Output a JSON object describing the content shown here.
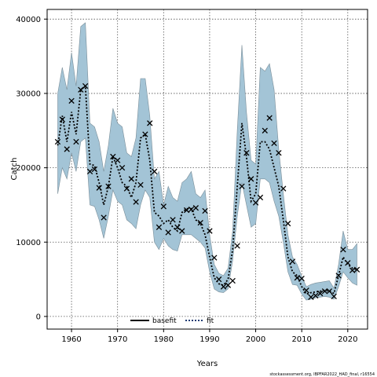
{
  "chart_data": {
    "type": "line",
    "xlabel": "Years",
    "ylabel": "Catch",
    "xlim": [
      1954.7,
      2024.3
    ],
    "ylim": [
      -1700,
      41300
    ],
    "x_ticks": [
      1960,
      1970,
      1980,
      1990,
      2000,
      2010,
      2020
    ],
    "y_ticks": [
      0,
      10000,
      20000,
      30000,
      40000
    ],
    "grid": true,
    "legend_position": "bottom-center",
    "colors": {
      "band": "#a3c4d6",
      "band_edge": "#7a8e99",
      "line": "#000000"
    },
    "credit": "stockassessment.org, IBPFAR2022_HAD_final, r16554",
    "x": [
      1957,
      1958,
      1959,
      1960,
      1961,
      1962,
      1963,
      1964,
      1965,
      1966,
      1967,
      1968,
      1969,
      1970,
      1971,
      1972,
      1973,
      1974,
      1975,
      1976,
      1977,
      1978,
      1979,
      1980,
      1981,
      1982,
      1983,
      1984,
      1985,
      1986,
      1987,
      1988,
      1989,
      1990,
      1991,
      1992,
      1993,
      1994,
      1995,
      1996,
      1997,
      1998,
      1999,
      2000,
      2001,
      2002,
      2003,
      2004,
      2005,
      2006,
      2007,
      2008,
      2009,
      2010,
      2011,
      2012,
      2013,
      2014,
      2015,
      2016,
      2017,
      2018,
      2019,
      2020,
      2021,
      2022
    ],
    "series": [
      {
        "name": "fit",
        "style": "dotted",
        "values": [
          23000,
          27000,
          23500,
          27500,
          24500,
          30500,
          31000,
          20500,
          20300,
          18000,
          15000,
          17500,
          21500,
          20000,
          18000,
          17500,
          16000,
          18000,
          24000,
          24500,
          21000,
          14000,
          13500,
          12500,
          13000,
          12000,
          11500,
          14000,
          14500,
          14500,
          13000,
          12500,
          11000,
          8000,
          5200,
          4400,
          4200,
          5000,
          9000,
          17500,
          26000,
          21500,
          15500,
          16500,
          23500,
          23500,
          22500,
          20000,
          17500,
          13000,
          8000,
          6000,
          5500,
          4000,
          3000,
          3200,
          3300,
          3400,
          3500,
          3400,
          3100,
          5500,
          8000,
          7000,
          6500,
          6300
        ]
      },
      {
        "name": "observed",
        "type": "scatter",
        "marker": "x",
        "values": [
          23500,
          26500,
          22500,
          29000,
          23500,
          30500,
          31000,
          19500,
          19800,
          17300,
          13300,
          17500,
          21500,
          21000,
          20000,
          17200,
          18500,
          15400,
          17700,
          24500,
          26000,
          19500,
          12000,
          14800,
          11300,
          13000,
          12000,
          11500,
          14300,
          14400,
          14600,
          12600,
          14200,
          11500,
          7900,
          5000,
          4000,
          4200,
          4800,
          9500,
          17500,
          22000,
          18500,
          15300,
          16000,
          25000,
          26700,
          23300,
          22000,
          17200,
          12500,
          7400,
          5200,
          5100,
          3500,
          2600,
          2800,
          3100,
          3400,
          3400,
          2700,
          5500,
          9000,
          7200,
          6200,
          6300
        ]
      }
    ],
    "band": {
      "name": "confidence interval",
      "lower": [
        16500,
        20000,
        18500,
        22000,
        19500,
        23500,
        24000,
        15000,
        14800,
        13000,
        10500,
        13500,
        17000,
        15500,
        15000,
        13000,
        12500,
        11800,
        15000,
        17000,
        16000,
        10000,
        9000,
        10500,
        9500,
        9000,
        8800,
        11000,
        11000,
        11000,
        10500,
        10000,
        9200,
        6000,
        3700,
        3300,
        3200,
        3700,
        7500,
        13500,
        18000,
        15000,
        12000,
        12500,
        18500,
        18500,
        18000,
        15500,
        13500,
        10000,
        6000,
        4300,
        4200,
        3000,
        2200,
        2300,
        2500,
        2600,
        2700,
        2600,
        2300,
        4000,
        6000,
        5200,
        4500,
        4200
      ],
      "upper": [
        30000,
        33500,
        30500,
        35500,
        31000,
        39000,
        39500,
        26000,
        25500,
        23500,
        19500,
        23000,
        28000,
        26000,
        25500,
        22000,
        21500,
        24000,
        32000,
        32000,
        27000,
        18500,
        19500,
        15000,
        17500,
        16000,
        15500,
        18000,
        18500,
        19500,
        16500,
        16000,
        17000,
        11000,
        7000,
        5800,
        5500,
        6500,
        11500,
        25000,
        36500,
        27500,
        21000,
        20500,
        33500,
        33000,
        34000,
        30500,
        22500,
        16500,
        11000,
        8000,
        7000,
        5400,
        4000,
        4300,
        4500,
        4600,
        4700,
        4800,
        3800,
        7000,
        11500,
        9000,
        9000,
        9800
      ]
    },
    "legend": [
      {
        "label": "basefit",
        "style": "solid",
        "color": "#000000"
      },
      {
        "label": "fit",
        "style": "dotted",
        "color": "#1f3b73"
      }
    ]
  }
}
